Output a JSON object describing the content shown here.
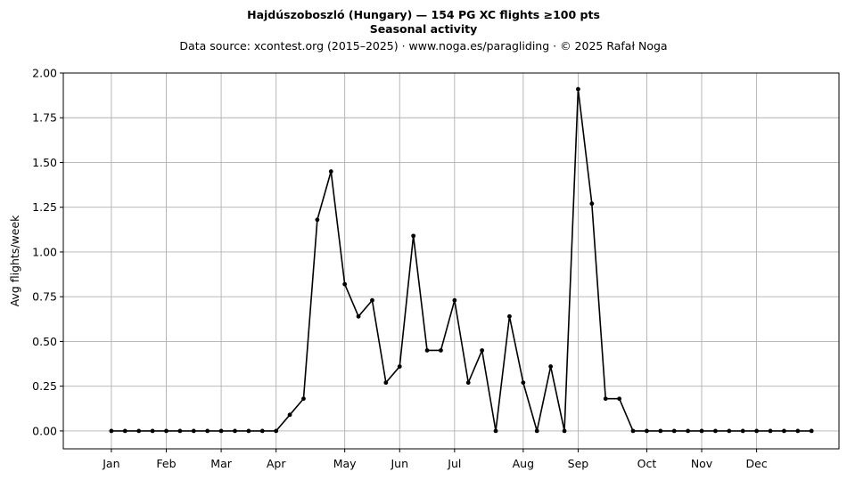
{
  "chart_data": {
    "type": "line",
    "title": "Hajdúszoboszló (Hungary)  —  154 PG XC flights ≥100 pts",
    "subtitle": "Seasonal activity",
    "source_line": "Data source: xcontest.org (2015–2025)  ·  www.noga.es/paragliding  ·  © 2025 Rafał Noga",
    "xlabel": "",
    "ylabel": "Avg flights/week",
    "ylim": [
      -0.1,
      2.0
    ],
    "xlim": [
      -2.5,
      54
    ],
    "grid": true,
    "legend": "none",
    "line_color": "#000000",
    "y_ticks": [
      {
        "value": 0.0,
        "label": "0.00"
      },
      {
        "value": 0.25,
        "label": "0.25"
      },
      {
        "value": 0.5,
        "label": "0.50"
      },
      {
        "value": 0.75,
        "label": "0.75"
      },
      {
        "value": 1.0,
        "label": "1.00"
      },
      {
        "value": 1.25,
        "label": "1.25"
      },
      {
        "value": 1.5,
        "label": "1.50"
      },
      {
        "value": 1.75,
        "label": "1.75"
      },
      {
        "value": 2.0,
        "label": "2.00"
      }
    ],
    "x_ticks": [
      {
        "week": 1,
        "label": "Jan"
      },
      {
        "week": 5,
        "label": "Feb"
      },
      {
        "week": 9,
        "label": "Mar"
      },
      {
        "week": 13,
        "label": "Apr"
      },
      {
        "week": 18,
        "label": "May"
      },
      {
        "week": 22,
        "label": "Jun"
      },
      {
        "week": 26,
        "label": "Jul"
      },
      {
        "week": 31,
        "label": "Aug"
      },
      {
        "week": 35,
        "label": "Sep"
      },
      {
        "week": 40,
        "label": "Oct"
      },
      {
        "week": 44,
        "label": "Nov"
      },
      {
        "week": 48,
        "label": "Dec"
      }
    ],
    "x": [
      1,
      2,
      3,
      4,
      5,
      6,
      7,
      8,
      9,
      10,
      11,
      12,
      13,
      14,
      15,
      16,
      17,
      18,
      19,
      20,
      21,
      22,
      23,
      24,
      25,
      26,
      27,
      28,
      29,
      30,
      31,
      32,
      33,
      34,
      35,
      36,
      37,
      38,
      39,
      40,
      41,
      42,
      43,
      44,
      45,
      46,
      47,
      48,
      49,
      50,
      51,
      52
    ],
    "values": [
      0,
      0,
      0,
      0,
      0,
      0,
      0,
      0,
      0,
      0,
      0,
      0,
      0,
      0.09,
      0.18,
      1.18,
      1.45,
      0.82,
      0.64,
      0.73,
      0.27,
      0.36,
      1.09,
      0.45,
      0.45,
      0.73,
      0.27,
      0.45,
      0,
      0.64,
      0.27,
      0,
      0.36,
      0,
      1.91,
      1.27,
      0.18,
      0.18,
      0,
      0,
      0,
      0,
      0,
      0,
      0,
      0,
      0,
      0,
      0,
      0,
      0,
      0
    ]
  }
}
